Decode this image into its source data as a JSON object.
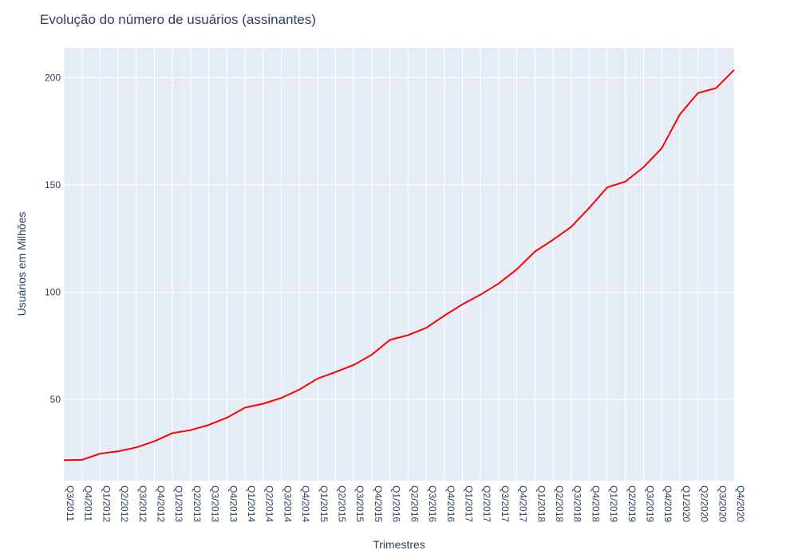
{
  "chart_data": {
    "type": "line",
    "title": "Evolução do número de usuários (assinantes)",
    "xlabel": "Trimestres",
    "ylabel": "Usuários em Milhões",
    "categories": [
      "Q3/2011",
      "Q4/2011",
      "Q1/2012",
      "Q2/2012",
      "Q3/2012",
      "Q4/2012",
      "Q1/2013",
      "Q2/2013",
      "Q3/2013",
      "Q4/2013",
      "Q1/2014",
      "Q2/2014",
      "Q3/2014",
      "Q4/2014",
      "Q1/2015",
      "Q2/2015",
      "Q3/2015",
      "Q4/2015",
      "Q1/2016",
      "Q2/2016",
      "Q3/2016",
      "Q4/2016",
      "Q1/2017",
      "Q2/2017",
      "Q3/2017",
      "Q4/2017",
      "Q1/2018",
      "Q2/2018",
      "Q3/2018",
      "Q4/2018",
      "Q1/2019",
      "Q2/2019",
      "Q3/2019",
      "Q4/2019",
      "Q1/2020",
      "Q2/2020",
      "Q3/2020",
      "Q4/2020"
    ],
    "yticks": [
      50,
      100,
      150,
      200
    ],
    "ylim": [
      12,
      214
    ],
    "grid": true,
    "series": [
      {
        "color": "#ff0000",
        "values": [
          21.6,
          21.7,
          24.6,
          25.7,
          27.5,
          30.4,
          34.2,
          35.6,
          38.0,
          41.4,
          46.1,
          47.9,
          50.6,
          54.5,
          59.6,
          62.7,
          66.0,
          70.8,
          77.7,
          79.9,
          83.3,
          89.0,
          94.3,
          98.8,
          104.0,
          110.6,
          118.9,
          124.4,
          130.4,
          139.3,
          148.9,
          151.6,
          158.3,
          167.1,
          182.9,
          192.9,
          195.2,
          203.7
        ]
      }
    ]
  }
}
